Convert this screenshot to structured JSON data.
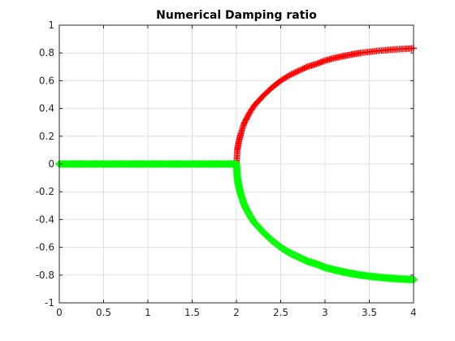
{
  "chart_data": {
    "type": "scatter",
    "title": "Numerical Damping ratio",
    "xlabel": "",
    "ylabel": "",
    "xlim": [
      0,
      4
    ],
    "ylim": [
      -1,
      1
    ],
    "xticks": [
      0,
      0.5,
      1,
      1.5,
      2,
      2.5,
      3,
      3.5,
      4
    ],
    "xtick_labels": [
      "0",
      "0.5",
      "1",
      "1.5",
      "2",
      "2.5",
      "3",
      "3.5",
      "4"
    ],
    "yticks": [
      -1,
      -0.8,
      -0.6,
      -0.4,
      -0.2,
      0,
      0.2,
      0.4,
      0.6,
      0.8,
      1
    ],
    "ytick_labels": [
      "-1",
      "-0.8",
      "-0.6",
      "-0.4",
      "-0.2",
      "0",
      "0.2",
      "0.4",
      "0.6",
      "0.8",
      "1"
    ],
    "grid": true,
    "legend": "none",
    "series": [
      {
        "marker": "plus",
        "color": "#ff0000",
        "x": [
          2,
          2.01,
          2.02,
          2.03,
          2.05,
          2.08,
          2.1,
          2.15,
          2.2,
          2.3,
          2.4,
          2.5,
          2.6,
          2.7,
          2.8,
          2.9,
          3,
          3.1,
          3.2,
          3.3,
          3.4,
          3.5,
          3.6,
          3.7,
          3.8,
          3.9,
          4
        ],
        "y": [
          0,
          0.1,
          0.14,
          0.17,
          0.22,
          0.28,
          0.31,
          0.37,
          0.42,
          0.49,
          0.55,
          0.6,
          0.64,
          0.67,
          0.7,
          0.72,
          0.745,
          0.762,
          0.776,
          0.789,
          0.8,
          0.808,
          0.815,
          0.821,
          0.826,
          0.83,
          0.833
        ]
      },
      {
        "marker": "diamond",
        "color": "#00ff00",
        "x": [
          0,
          0.1,
          0.2,
          0.3,
          0.4,
          0.5,
          0.6,
          0.7,
          0.8,
          0.9,
          1,
          1.1,
          1.2,
          1.3,
          1.4,
          1.5,
          1.6,
          1.7,
          1.8,
          1.9,
          1.95,
          2,
          2.01,
          2.02,
          2.03,
          2.05,
          2.08,
          2.1,
          2.15,
          2.2,
          2.3,
          2.4,
          2.5,
          2.6,
          2.7,
          2.8,
          2.9,
          3,
          3.1,
          3.2,
          3.3,
          3.4,
          3.5,
          3.6,
          3.7,
          3.8,
          3.9,
          4
        ],
        "y": [
          0,
          0,
          0,
          0,
          0,
          0,
          0,
          0,
          0,
          0,
          0,
          0,
          0,
          0,
          0,
          0,
          0,
          0,
          0,
          0,
          0,
          0,
          -0.1,
          -0.14,
          -0.17,
          -0.22,
          -0.28,
          -0.31,
          -0.37,
          -0.42,
          -0.49,
          -0.55,
          -0.6,
          -0.64,
          -0.67,
          -0.7,
          -0.72,
          -0.745,
          -0.762,
          -0.776,
          -0.789,
          -0.8,
          -0.808,
          -0.815,
          -0.821,
          -0.826,
          -0.83,
          -0.833
        ]
      }
    ]
  }
}
